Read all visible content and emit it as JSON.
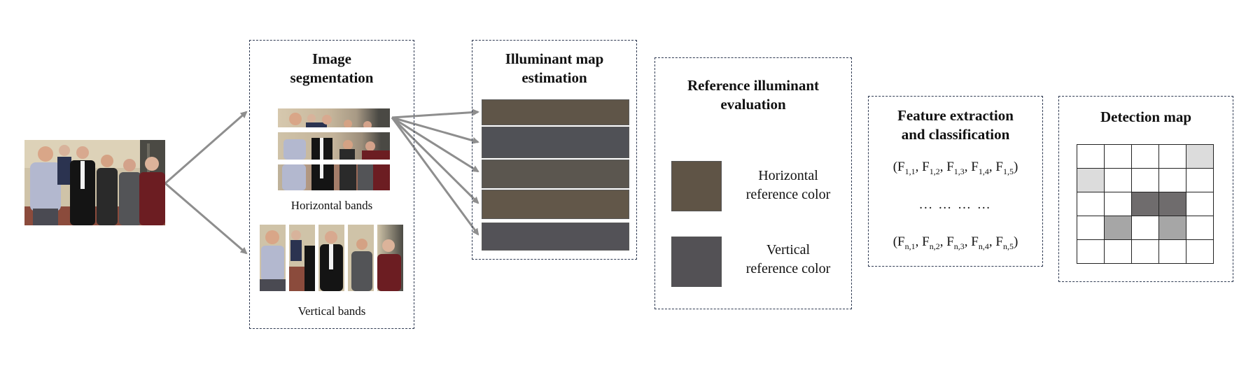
{
  "panels": {
    "segmentation": {
      "title_line1": "Image",
      "title_line2": "segmentation",
      "horizontal_caption": "Horizontal bands",
      "vertical_caption": "Vertical bands"
    },
    "illuminant_map": {
      "title_line1": "Illuminant map",
      "title_line2": "estimation",
      "band_colors": [
        "#5f5548",
        "#505156",
        "#5b564f",
        "#625749",
        "#535257"
      ]
    },
    "reference": {
      "title_line1": "Reference illuminant",
      "title_line2": "evaluation",
      "horizontal_label_line1": "Horizontal",
      "horizontal_label_line2": "reference color",
      "vertical_label_line1": "Vertical",
      "vertical_label_line2": "reference color",
      "horizontal_color": "#5f5446",
      "vertical_color": "#535155"
    },
    "features": {
      "title_line1": "Feature extraction",
      "title_line2": "and classification",
      "row_first": {
        "prefix": "1",
        "indices": [
          "1",
          "2",
          "3",
          "4",
          "5"
        ]
      },
      "dots": "... …  … …",
      "row_last": {
        "prefix": "n",
        "indices": [
          "1",
          "2",
          "3",
          "4",
          "5"
        ]
      },
      "symbol": "F"
    },
    "detection": {
      "title": "Detection map",
      "cells": [
        "#ffffff",
        "#ffffff",
        "#ffffff",
        "#ffffff",
        "#dcdcdc",
        "#dcdcdc",
        "#ffffff",
        "#ffffff",
        "#ffffff",
        "#ffffff",
        "#ffffff",
        "#ffffff",
        "#6f6c6d",
        "#6f6c6d",
        "#ffffff",
        "#ffffff",
        "#a6a6a6",
        "#ffffff",
        "#a6a6a6",
        "#ffffff",
        "#ffffff",
        "#ffffff",
        "#ffffff",
        "#ffffff",
        "#ffffff"
      ]
    }
  },
  "colors": {
    "arrow": "#8e8e8e",
    "panel_border": "#2f3a52"
  }
}
